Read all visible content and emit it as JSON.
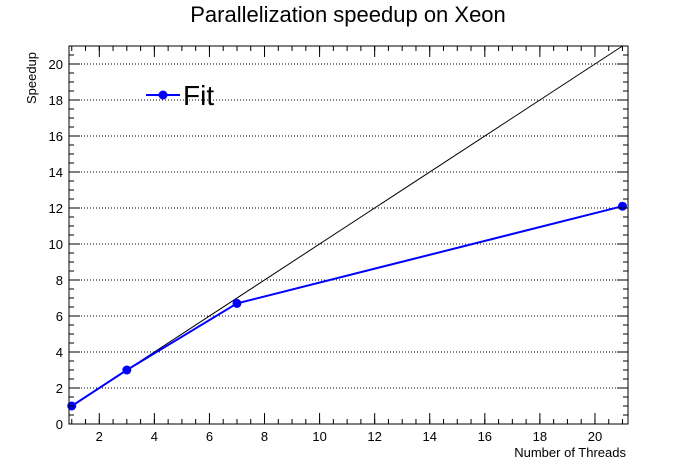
{
  "chart_data": {
    "type": "line",
    "title": "Parallelization speedup on Xeon",
    "xlabel": "Number of Threads",
    "ylabel": "Speedup",
    "xlim": [
      0.9,
      21.2
    ],
    "ylim": [
      0,
      21
    ],
    "x_ticks": [
      2,
      4,
      6,
      8,
      10,
      12,
      14,
      16,
      18,
      20
    ],
    "y_ticks": [
      0,
      2,
      4,
      6,
      8,
      10,
      12,
      14,
      16,
      18,
      20
    ],
    "grid": "horizontal dotted",
    "legend_position": "top-left",
    "series": [
      {
        "name": "Fit",
        "color": "#0000ff",
        "marker": "circle",
        "x": [
          1,
          3,
          7,
          21
        ],
        "y": [
          1.0,
          3.0,
          6.7,
          12.1
        ]
      }
    ],
    "reference_line": {
      "color": "#000000",
      "x": [
        1,
        21
      ],
      "y": [
        1,
        21
      ]
    }
  }
}
